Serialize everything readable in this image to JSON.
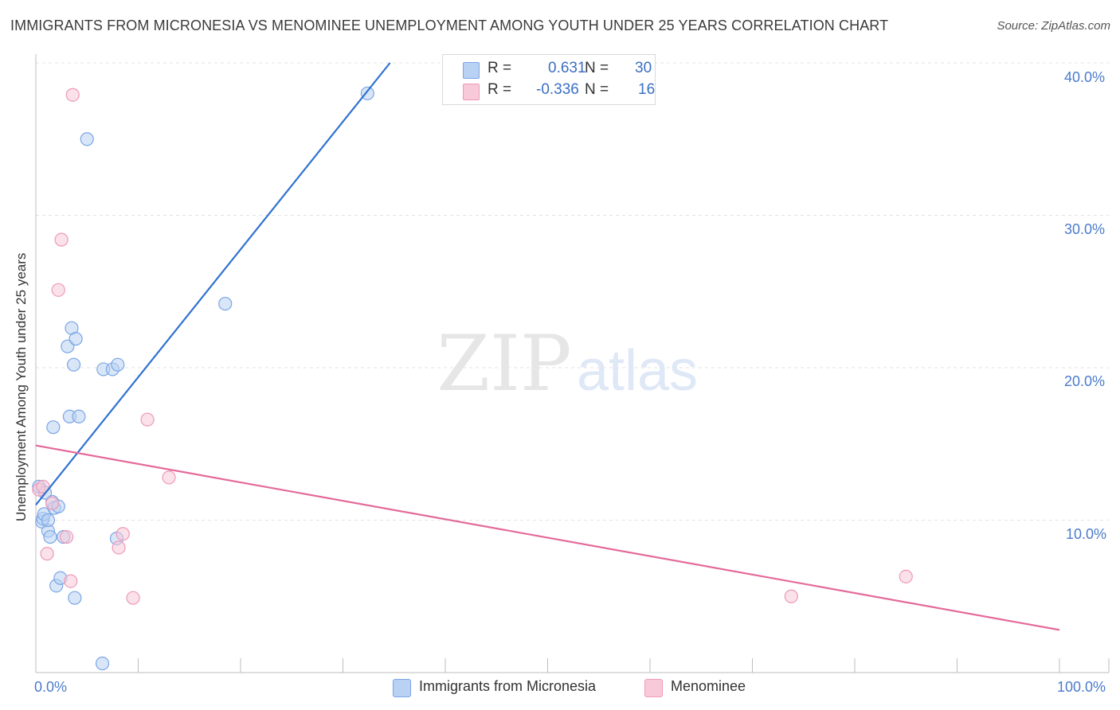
{
  "chart_data": {
    "type": "scatter",
    "title": "IMMIGRANTS FROM MICRONESIA VS MENOMINEE UNEMPLOYMENT AMONG YOUTH UNDER 25 YEARS CORRELATION CHART",
    "source": "Source: ZipAtlas.com",
    "xlabel": "",
    "ylabel": "Unemployment Among Youth under 25 years",
    "xlim": [
      0,
      100
    ],
    "ylim": [
      0,
      40
    ],
    "x_tick_labels": [
      "0.0%",
      "100.0%"
    ],
    "y_ticks": [
      10,
      20,
      30,
      40
    ],
    "y_tick_labels": [
      "10.0%",
      "20.0%",
      "30.0%",
      "40.0%"
    ],
    "watermark": {
      "zip": "ZIP",
      "atlas": "atlas"
    },
    "legend": [
      {
        "r_label": "R =",
        "r_value": "0.631",
        "n_label": "N =",
        "n_value": "30"
      },
      {
        "r_label": "R =",
        "r_value": "-0.336",
        "n_label": "N =",
        "n_value": "16"
      }
    ],
    "series": [
      {
        "name": "Immigrants from Micronesia",
        "color": "#7aa6e6",
        "fill": "#b9d1f3",
        "trend_color": "#2f72d0",
        "trend": {
          "x0": 0.0,
          "y0": 11.0,
          "x1": 34.6,
          "y1": 40.0
        },
        "points": [
          [
            0.3,
            12.2
          ],
          [
            0.6,
            9.9
          ],
          [
            0.7,
            10.1
          ],
          [
            0.8,
            10.4
          ],
          [
            1.2,
            9.3
          ],
          [
            1.2,
            10.0
          ],
          [
            1.4,
            8.9
          ],
          [
            1.6,
            11.2
          ],
          [
            1.7,
            16.1
          ],
          [
            1.8,
            10.8
          ],
          [
            2.0,
            5.7
          ],
          [
            2.2,
            10.9
          ],
          [
            2.4,
            6.2
          ],
          [
            2.7,
            8.9
          ],
          [
            3.1,
            21.4
          ],
          [
            3.3,
            16.8
          ],
          [
            3.5,
            22.6
          ],
          [
            3.7,
            20.2
          ],
          [
            3.8,
            4.9
          ],
          [
            3.9,
            21.9
          ],
          [
            4.2,
            16.8
          ],
          [
            5.0,
            35.0
          ],
          [
            6.5,
            0.6
          ],
          [
            6.6,
            19.9
          ],
          [
            7.5,
            19.9
          ],
          [
            7.9,
            8.8
          ],
          [
            8.0,
            20.2
          ],
          [
            18.5,
            24.2
          ],
          [
            32.4,
            38.0
          ],
          [
            0.9,
            11.8
          ]
        ]
      },
      {
        "name": "Menominee",
        "color": "#ee9ab6",
        "fill": "#f8c9d9",
        "trend_color": "#e4699a",
        "trend": {
          "x0": 0.0,
          "y0": 14.9,
          "x1": 100.0,
          "y1": 2.8
        },
        "points": [
          [
            0.3,
            12.0
          ],
          [
            0.7,
            12.2
          ],
          [
            1.1,
            7.8
          ],
          [
            1.6,
            11.1
          ],
          [
            2.2,
            25.1
          ],
          [
            2.5,
            28.4
          ],
          [
            3.0,
            8.9
          ],
          [
            3.4,
            6.0
          ],
          [
            3.6,
            37.9
          ],
          [
            8.1,
            8.2
          ],
          [
            8.5,
            9.1
          ],
          [
            9.5,
            4.9
          ],
          [
            10.9,
            16.6
          ],
          [
            13.0,
            12.8
          ],
          [
            73.8,
            5.0
          ],
          [
            85.0,
            6.3
          ]
        ]
      }
    ]
  }
}
